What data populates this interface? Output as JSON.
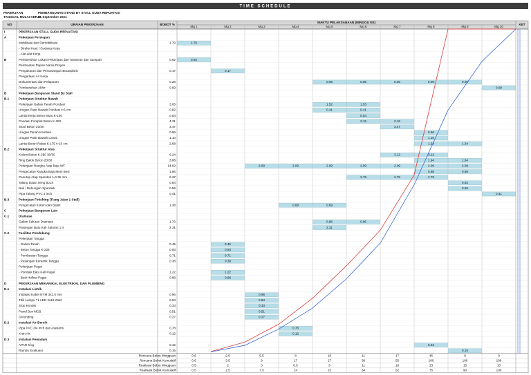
{
  "header": {
    "title": "TIME SCHEDULE",
    "project_label": "PEKERJAAN",
    "project": "PEMBANGUNAN STAND BY STALL GUDA REPUATASI",
    "date_label": "TANGGAL MULAI KERJA",
    "date": "01 September 2021"
  },
  "table": {
    "columns": {
      "no": "NO",
      "item": "URAIAN PEKERJAAN",
      "weight": "BOBOT %",
      "time": "WAKTU PELAKSANAAN (MINGGU KE)",
      "note": "KET"
    },
    "weeks": [
      "Mg 1",
      "Mg 2",
      "Mg 3",
      "Mg 4",
      "Mg 5",
      "Mg 6",
      "Mg 7",
      "Mg 8",
      "Mg 9",
      "Mg 10"
    ],
    "rows": [
      {
        "no": "I",
        "text": "PEKERJAAN STALL GUDA REPUATASI",
        "bold": true
      },
      {
        "no": "A",
        "text": "Pekerjaan Persiapan",
        "bold": true
      },
      {
        "text": "Mobilisasi dan Demobilisasi",
        "bobot": "1.79",
        "cells": [
          [
            0,
            "1.79"
          ]
        ]
      },
      {
        "text": "- Direksi Keet / Gudang Kerja"
      },
      {
        "text": "- Alat-alat Kerja"
      },
      {
        "no": "B",
        "text": "Pembersihan Lokasi Pekerjaan dari Tanaman dan Sampah",
        "bobot": "0.92",
        "cells": [
          [
            0,
            "0.92"
          ]
        ]
      },
      {
        "text": "Pembuatan Papan Nama Proyek"
      },
      {
        "text": "Pengukuran dan Pemasangan Bouwplank",
        "bobot": "0.17",
        "cells": [
          [
            1,
            "0.17"
          ]
        ]
      },
      {
        "text": "Pengadaan Air Kerja"
      },
      {
        "text": "Dokumentasi dan Pelaporan",
        "bobot": "0.26",
        "cells": [
          [
            4,
            "0.05"
          ],
          [
            5,
            "0.05"
          ],
          [
            6,
            "0.05"
          ],
          [
            7,
            "0.06"
          ],
          [
            8,
            "0.05"
          ]
        ]
      },
      {
        "text": "Pembersihan Akhir",
        "bobot": "0.09",
        "cells": [
          [
            9,
            "0.09"
          ]
        ]
      },
      {
        "no": "B",
        "text": "Pekerjaan Bangunan Stand By Stall",
        "bold": true
      },
      {
        "no": "B.1",
        "text": "Pekerjaan Struktur Bawah",
        "bold": true
      },
      {
        "text": "Pekerjaan Galian Tanah Pondasi",
        "bobot": "3.05",
        "cells": [
          [
            4,
            "1.52"
          ],
          [
            5,
            "1.53"
          ]
        ]
      },
      {
        "text": "Urugan Pasir Bawah Pondasi t=5 cm",
        "bobot": "0.82",
        "cells": [
          [
            4,
            "0.41"
          ],
          [
            5,
            "0.41"
          ]
        ]
      },
      {
        "text": "Lantai Kerja Beton Mutu K-100",
        "bobot": "0.54",
        "cells": [
          [
            5,
            "0.54"
          ]
        ]
      },
      {
        "text": "Pondasi Footplat Beton K-250",
        "bobot": "4.31",
        "cells": [
          [
            5,
            "2.15"
          ],
          [
            6,
            "2.16"
          ]
        ]
      },
      {
        "text": "Sloof Beton 20/30",
        "bobot": "3.47",
        "cells": [
          [
            6,
            "3.47"
          ]
        ]
      },
      {
        "text": "Urugan Tanah Kembali",
        "bobot": "0.66",
        "cells": [
          [
            7,
            "0.66"
          ]
        ]
      },
      {
        "text": "Urugan Pasir Bawah Lantai",
        "bobot": "1.10",
        "cells": [
          [
            7,
            "1.10"
          ]
        ]
      },
      {
        "text": "Lantai Beton Rabat K-175 t=10 cm",
        "bobot": "2.68",
        "cells": [
          [
            7,
            "1.34"
          ],
          [
            8,
            "1.34"
          ]
        ]
      },
      {
        "no": "B.2",
        "text": "Pekerjaan Struktur Atas",
        "bold": true
      },
      {
        "text": "Kolom Beton K-250 30/30",
        "bobot": "6.24",
        "cells": [
          [
            6,
            "3.12"
          ],
          [
            7,
            "3.12"
          ]
        ]
      },
      {
        "text": "Ring Balok Beton 20/30",
        "bobot": "3.88",
        "cells": [
          [
            7,
            "1.94"
          ],
          [
            8,
            "1.94"
          ]
        ]
      },
      {
        "text": "Pekerjaan Rangka Atap Baja WF",
        "bobot": "14.62",
        "cells": [
          [
            2,
            "2.09"
          ],
          [
            3,
            "2.09"
          ],
          [
            4,
            "2.09"
          ],
          [
            5,
            "2.09"
          ],
          [
            6,
            "2.09"
          ],
          [
            7,
            "2.09"
          ],
          [
            8,
            "2.08"
          ]
        ]
      },
      {
        "text": "Pengecatan Rangka Baja Meni Besi",
        "bobot": "1.96",
        "cells": [
          [
            7,
            "0.98"
          ],
          [
            8,
            "0.98"
          ]
        ]
      },
      {
        "text": "Penutup Atap Spandek t=0.35 mm",
        "bobot": "8.37",
        "cells": [
          [
            5,
            "2.79"
          ],
          [
            6,
            "2.79"
          ],
          [
            7,
            "2.79"
          ]
        ]
      },
      {
        "text": "Talang Datar Seng BJLS",
        "bobot": "0.84",
        "cells": [
          [
            8,
            "0.84"
          ]
        ]
      },
      {
        "text": "Nok / Bubungan Spandek",
        "bobot": "0.55",
        "cells": [
          [
            8,
            "0.55"
          ]
        ]
      },
      {
        "text": "Pipa Talang PVC 4 inch",
        "bobot": "0.41",
        "cells": [
          [
            9,
            "0.41"
          ]
        ]
      },
      {
        "no": "B.3",
        "text": "Pekerjaan Finishing (Tiang Jalan 1 Stall)",
        "bold": true
      },
      {
        "text": "Pengecatan Kolom dan Balok",
        "bobot": "1.38",
        "cells": [
          [
            3,
            "0.69"
          ],
          [
            4,
            "0.69"
          ]
        ]
      },
      {
        "no": "C",
        "text": "Pekerjaan Bangunan Lain",
        "bold": true
      },
      {
        "no": "C.1",
        "text": "Drainase",
        "bold": true
      },
      {
        "text": "Galian Saluran Drainase",
        "bobot": "1.72",
        "cells": [
          [
            4,
            "0.86"
          ],
          [
            5,
            "0.86"
          ]
        ]
      },
      {
        "text": "Pasangan Batu Kali Saluran 1:4",
        "bobot": "2.31",
        "cells": [
          [
            4,
            "2.31"
          ]
        ]
      },
      {
        "no": "C.2",
        "text": "Fasilitas Pendukung",
        "bold": true
      },
      {
        "text": "Pekerjaan Tangga"
      },
      {
        "text": "- Galian Tanah",
        "bobot": "0.45",
        "cells": [
          [
            1,
            "0.45"
          ]
        ]
      },
      {
        "text": "- Beton Tangga K-225",
        "bobot": "0.93",
        "cells": [
          [
            1,
            "0.93"
          ]
        ]
      },
      {
        "text": "- Pembesian Tangga",
        "bobot": "0.71",
        "cells": [
          [
            1,
            "0.71"
          ]
        ]
      },
      {
        "text": "- Pasangan Keramik Tangga",
        "bobot": "0.38",
        "cells": [
          [
            1,
            "0.38"
          ]
        ]
      },
      {
        "text": "Pekerjaan Pagar"
      },
      {
        "text": "- Pondasi Batu Kali Pagar",
        "bobot": "1.22",
        "cells": [
          [
            1,
            "1.22"
          ]
        ]
      },
      {
        "text": "- Besi Hollow Pagar",
        "bobot": "0.88",
        "cells": [
          [
            1,
            "0.88"
          ]
        ]
      },
      {
        "no": "D",
        "text": "PEKERJAAN MEKANIKAL ELEKTRIKAL DAN PLUMBING",
        "bold": true
      },
      {
        "no": "D.1",
        "text": "Instalasi Listrik",
        "bold": true
      },
      {
        "text": "Instalasi Kabel NYM 3x2.5 mm",
        "bobot": "0.96",
        "cells": [
          [
            2,
            "0.96"
          ]
        ]
      },
      {
        "text": "Titik Lampu TL LED 2x18 Watt",
        "bobot": "0.64",
        "cells": [
          [
            2,
            "0.64"
          ]
        ]
      },
      {
        "text": "Stop Kontak",
        "bobot": "0.33",
        "cells": [
          [
            2,
            "0.33"
          ]
        ]
      },
      {
        "text": "Panel Box MCB",
        "bobot": "0.51",
        "cells": [
          [
            2,
            "0.51"
          ]
        ]
      },
      {
        "text": "Grounding",
        "bobot": "0.27",
        "cells": [
          [
            2,
            "0.27"
          ]
        ]
      },
      {
        "no": "D.2",
        "text": "Instalasi Air Bersih",
        "bold": true
      },
      {
        "text": "Pipa PVC 3/4 inch dan Asesoris",
        "bobot": "0.78",
        "cells": [
          [
            3,
            "0.78"
          ]
        ]
      },
      {
        "text": "Kran Air",
        "bobot": "0.12",
        "cells": [
          [
            3,
            "0.12"
          ]
        ]
      },
      {
        "no": "D.3",
        "text": "Instalasi Pemadam",
        "bold": true
      },
      {
        "text": "APAR 6 kg",
        "bobot": "0.42",
        "cells": [
          [
            7,
            "0.42"
          ]
        ]
      },
      {
        "text": "Rambu Evakuasi",
        "bobot": "0.15",
        "cells": [
          [
            8,
            "0.15"
          ]
        ]
      }
    ]
  },
  "s_curve": {
    "ylim": [
      0,
      100
    ],
    "series": [
      {
        "weekly_label": "Rencana Bobot Mingguan",
        "name": "Rencana Bobot Kumulatif",
        "color": "#e03a3a",
        "weekly": [
          0.6,
          2.9,
          5.5,
          8.0,
          10.0,
          11.0,
          17.0,
          45.0,
          0,
          0
        ],
        "values": [
          0.6,
          3.5,
          9.0,
          17.0,
          27.0,
          38.0,
          55.0,
          100,
          100,
          100
        ]
      },
      {
        "weekly_label": "Realisasi Bobot Mingguan",
        "name": "Realisasi Bobot Kumulatif",
        "color": "#3a66d8",
        "weekly": [
          0.5,
          2.0,
          5.0,
          6.5,
          9.0,
          11.0,
          18.0,
          23.0,
          15.0,
          10.0
        ],
        "values": [
          0.5,
          2.5,
          7.5,
          14.0,
          23.0,
          34.0,
          52.0,
          75.0,
          90.0,
          100
        ]
      }
    ]
  }
}
